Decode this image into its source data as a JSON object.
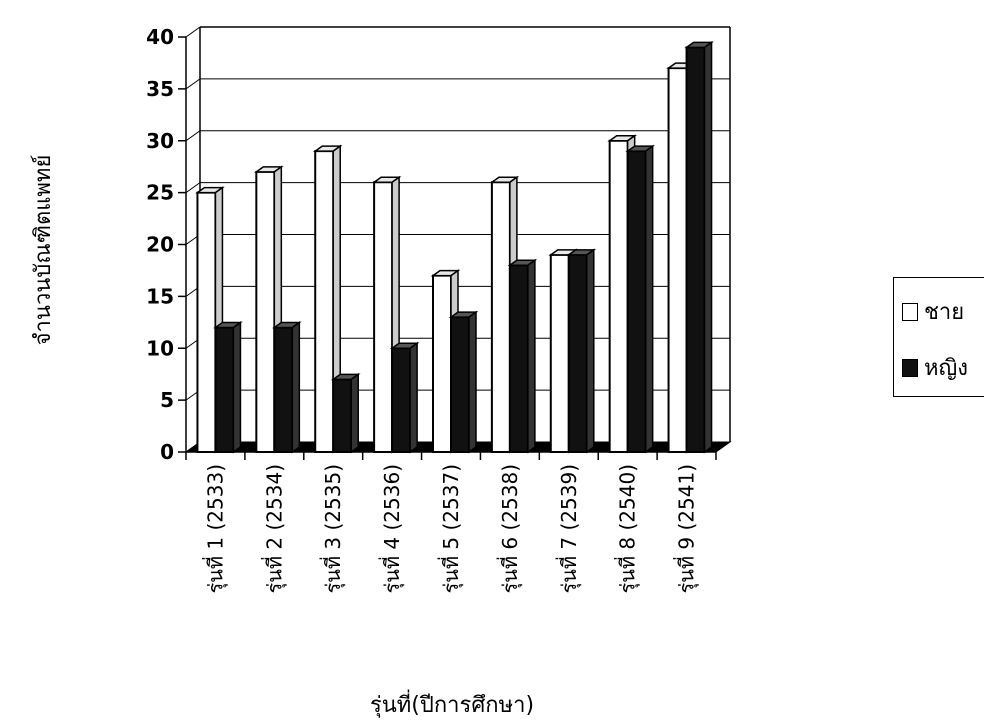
{
  "chart_data": {
    "type": "bar",
    "title": "",
    "xlabel": "รุ่นที่(ปีการศึกษา)",
    "ylabel": "จำนวนบัณฑิตแพทย์",
    "ylim": [
      0,
      40
    ],
    "yticks": [
      "0",
      "5",
      "10",
      "15",
      "20",
      "25",
      "30",
      "35",
      "40"
    ],
    "categories": [
      "รุ่นที่ 1 (2533)",
      "รุ่นที่ 2 (2534)",
      "รุ่นที่ 3 (2535)",
      "รุ่นที่ 4 (2536)",
      "รุ่นที่ 5 (2537)",
      "รุ่นที่ 6 (2538)",
      "รุ่นที่ 7 (2539)",
      "รุ่นที่ 8 (2540)",
      "รุ่นที่ 9 (2541)"
    ],
    "series": [
      {
        "name": "ชาย",
        "color": "#ffffff",
        "values": [
          25,
          27,
          29,
          26,
          17,
          26,
          19,
          30,
          37
        ]
      },
      {
        "name": "หญิง",
        "color": "#111111",
        "values": [
          12,
          12,
          7,
          10,
          13,
          18,
          19,
          29,
          39
        ]
      }
    ],
    "grid": true,
    "legend_position": "right",
    "style": "3d"
  }
}
